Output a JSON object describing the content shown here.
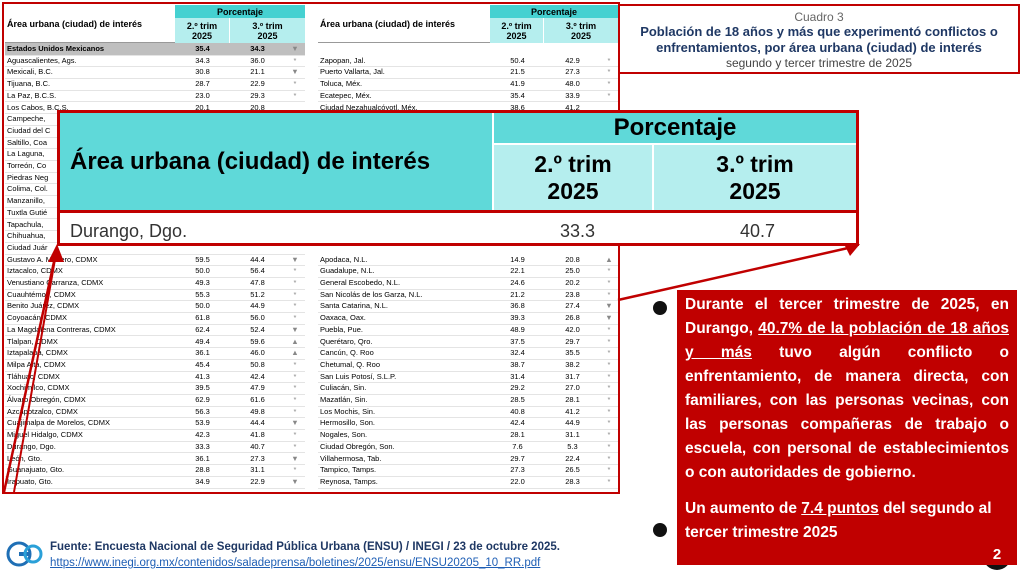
{
  "header": {
    "label": "Cuadro 3",
    "title": "Población de 18 años y más que experimentó conflictos o enfrentamientos, por área urbana (ciudad) de interés",
    "subtitle": "segundo y tercer trimestre de 2025"
  },
  "table": {
    "col_headers": [
      "Área urbana (ciudad) de interés",
      "Porcentaje",
      "2.º trim 2025",
      "3.º trim 2025"
    ],
    "left_rows": [
      [
        "Estados Unidos Mexicanos",
        "35.4",
        "34.3",
        "▼"
      ],
      [
        "Aguascalientes, Ags.",
        "34.3",
        "36.0",
        "*"
      ],
      [
        "Mexicali, B.C.",
        "30.8",
        "21.1",
        "▼"
      ],
      [
        "Tijuana, B.C.",
        "28.7",
        "22.9",
        "*"
      ],
      [
        "La Paz, B.C.S.",
        "23.0",
        "29.3",
        "*"
      ],
      [
        "Los Cabos, B.C.S.",
        "20.1",
        "20.8"
      ],
      [
        "Campeche,"
      ],
      [
        "Ciudad del C"
      ],
      [
        "Saltillo, Coa"
      ],
      [
        "La Laguna,"
      ],
      [
        "Torreón, Co"
      ],
      [
        "Piedras Neg"
      ],
      [
        "Colima, Col."
      ],
      [
        "Manzanillo,"
      ],
      [
        "Tuxtla Gutié"
      ],
      [
        "Tapachula,"
      ],
      [
        "Chihuahua,"
      ],
      [
        "Ciudad Juár"
      ],
      [
        "Gustavo A. Madero, CDMX",
        "59.5",
        "44.4",
        "▼"
      ],
      [
        "Iztacalco, CDMX",
        "50.0",
        "56.4",
        "*"
      ],
      [
        "Venustiano Carranza, CDMX",
        "49.3",
        "47.8",
        "*"
      ],
      [
        "Cuauhtémoc, CDMX",
        "55.3",
        "51.2",
        "*"
      ],
      [
        "Benito Juárez, CDMX",
        "50.0",
        "44.9",
        "*"
      ],
      [
        "Coyoacán, CDMX",
        "61.8",
        "56.0",
        "*"
      ],
      [
        "La Magdalena Contreras, CDMX",
        "62.4",
        "52.4",
        "▼"
      ],
      [
        "Tlalpan, CDMX",
        "49.4",
        "59.6",
        "▲"
      ],
      [
        "Iztapalapa, CDMX",
        "36.1",
        "46.0",
        "▲"
      ],
      [
        "Milpa Alta, CDMX",
        "45.4",
        "50.8",
        "*"
      ],
      [
        "Tláhuac, CDMX",
        "41.3",
        "42.4",
        "*"
      ],
      [
        "Xochimilco, CDMX",
        "39.5",
        "47.9",
        "*"
      ],
      [
        "Álvaro Obregón, CDMX",
        "62.9",
        "61.6",
        "*"
      ],
      [
        "Azcapotzalco, CDMX",
        "56.3",
        "49.8",
        "*"
      ],
      [
        "Cuajimalpa de Morelos, CDMX",
        "53.9",
        "44.4",
        "▼"
      ],
      [
        "Miguel Hidalgo, CDMX",
        "42.3",
        "41.8",
        "*"
      ],
      [
        "Durango, Dgo.",
        "33.3",
        "40.7",
        "*"
      ],
      [
        "León, Gto.",
        "36.1",
        "27.3",
        "▼"
      ],
      [
        "Guanajuato, Gto.",
        "28.8",
        "31.1",
        "*"
      ],
      [
        "Irapuato, Gto.",
        "34.9",
        "22.9",
        "▼"
      ]
    ],
    "right_rows": [
      [
        "Zapopan, Jal.",
        "50.4",
        "42.9",
        "*"
      ],
      [
        "Puerto Vallarta, Jal.",
        "21.5",
        "27.3",
        "*"
      ],
      [
        "Toluca, Méx.",
        "41.9",
        "48.0",
        "*"
      ],
      [
        "Ecatepec, Méx.",
        "35.4",
        "33.9",
        "*"
      ],
      [
        "Ciudad Nezahualcóyotl, Méx.",
        "38.6",
        "41.2"
      ],
      [
        "Apodaca, N.L.",
        "14.9",
        "20.8",
        "▲"
      ],
      [
        "Guadalupe, N.L.",
        "22.1",
        "25.0",
        "*"
      ],
      [
        "General Escobedo, N.L.",
        "24.6",
        "20.2",
        "*"
      ],
      [
        "San Nicolás de los Garza, N.L.",
        "21.2",
        "23.8",
        "*"
      ],
      [
        "Santa Catarina, N.L.",
        "36.8",
        "27.4",
        "▼"
      ],
      [
        "Oaxaca, Oax.",
        "39.3",
        "26.8",
        "▼"
      ],
      [
        "Puebla, Pue.",
        "48.9",
        "42.0",
        "*"
      ],
      [
        "Querétaro, Qro.",
        "37.5",
        "29.7",
        "*"
      ],
      [
        "Cancún, Q. Roo",
        "32.4",
        "35.5",
        "*"
      ],
      [
        "Chetumal, Q. Roo",
        "38.7",
        "38.2",
        "*"
      ],
      [
        "San Luis Potosí, S.L.P.",
        "31.4",
        "31.7",
        "*"
      ],
      [
        "Culiacán, Sin.",
        "29.2",
        "27.0",
        "*"
      ],
      [
        "Mazatlán, Sin.",
        "28.5",
        "28.1",
        "*"
      ],
      [
        "Los Mochis, Sin.",
        "40.8",
        "41.2",
        "*"
      ],
      [
        "Hermosillo, Son.",
        "42.4",
        "44.9",
        "*"
      ],
      [
        "Nogales, Son.",
        "28.1",
        "31.1",
        "*"
      ],
      [
        "Ciudad Obregón, Son.",
        "7.6",
        "5.3",
        "*"
      ],
      [
        "Villahermosa, Tab.",
        "29.7",
        "22.4",
        "*"
      ],
      [
        "Tampico, Tamps.",
        "27.3",
        "26.5",
        "*"
      ],
      [
        "Reynosa, Tamps.",
        "22.0",
        "28.3",
        "*"
      ]
    ]
  },
  "zoom": {
    "col_headers": [
      "Área urbana (ciudad) de interés",
      "Porcentaje",
      "2.º trim 2025",
      "3.º trim 2025"
    ],
    "row": [
      "Durango, Dgo.",
      "33.3",
      "40.7"
    ]
  },
  "callout": {
    "bullets": [
      [
        "Durante el tercer trimestre de 2025, en Durango, ",
        "40.7% de la población de 18 años y más",
        " tuvo algún conflicto o enfrentamiento, de manera directa, con familiares, con las personas vecinas, con las personas compañeras de trabajo o escuela, con personal de establecimientos o con autoridades de gobierno."
      ],
      [
        "Un aumento de ",
        "7.4 puntos",
        " del segundo al tercer trimestre 2025"
      ]
    ]
  },
  "footer": {
    "source": "Fuente: Encuesta Nacional de Seguridad Pública Urbana (ENSU) / INEGI / 23 de octubre 2025.",
    "url": "https://www.inegi.org.mx/contenidos/saladeprensa/boletines/2025/ensu/ENSU20205_10_RR.pdf",
    "page": "2"
  }
}
